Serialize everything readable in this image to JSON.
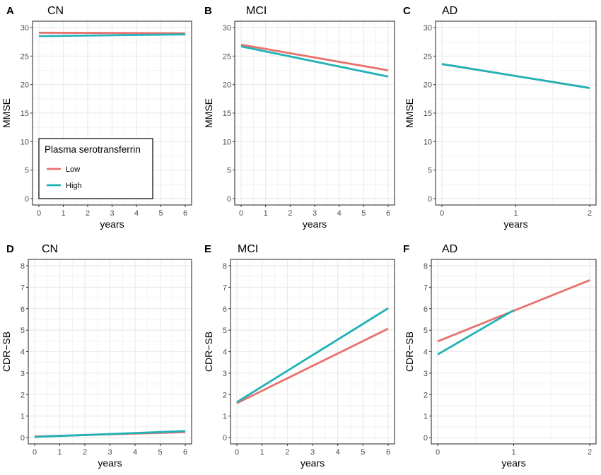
{
  "colors": {
    "low": "#e8716d",
    "high": "#1fb2b8",
    "grid": "#ebebeb",
    "frame": "#333333",
    "text": "#000000",
    "tick": "#4d4d4d"
  },
  "legend": {
    "title": "Plasma serotransferrin",
    "items": [
      {
        "label": "Low",
        "series": "low"
      },
      {
        "label": "High",
        "series": "high"
      }
    ]
  },
  "chart_data": [
    {
      "panel": "A",
      "title": "CN",
      "type": "line",
      "xlabel": "years",
      "ylabel": "MMSE",
      "xlim": [
        0,
        6
      ],
      "xticks": [
        0,
        1,
        2,
        3,
        4,
        5,
        6
      ],
      "ylim": [
        0,
        30
      ],
      "yticks": [
        0,
        5,
        10,
        15,
        20,
        25,
        30
      ],
      "legend": "bottom-left",
      "series": [
        {
          "name": "Low",
          "color_key": "low",
          "x": [
            0,
            6
          ],
          "y": [
            29.1,
            29.0
          ]
        },
        {
          "name": "High",
          "color_key": "high",
          "x": [
            0,
            6
          ],
          "y": [
            28.5,
            28.8
          ]
        }
      ]
    },
    {
      "panel": "B",
      "title": "MCI",
      "type": "line",
      "xlabel": "years",
      "ylabel": "MMSE",
      "xlim": [
        0,
        6
      ],
      "xticks": [
        0,
        1,
        2,
        3,
        4,
        5,
        6
      ],
      "ylim": [
        0,
        30
      ],
      "yticks": [
        0,
        5,
        10,
        15,
        20,
        25,
        30
      ],
      "series": [
        {
          "name": "Low",
          "color_key": "low",
          "x": [
            0,
            6
          ],
          "y": [
            27.0,
            22.5
          ]
        },
        {
          "name": "High",
          "color_key": "high",
          "x": [
            0,
            6
          ],
          "y": [
            26.7,
            21.4
          ]
        }
      ]
    },
    {
      "panel": "C",
      "title": "AD",
      "type": "line",
      "xlabel": "years",
      "ylabel": "MMSE",
      "xlim": [
        0,
        2
      ],
      "xticks": [
        0,
        1,
        2
      ],
      "ylim": [
        0,
        30
      ],
      "yticks": [
        0,
        5,
        10,
        15,
        20,
        25,
        30
      ],
      "series": [
        {
          "name": "Low",
          "color_key": "low",
          "x": [
            0,
            2
          ],
          "y": [
            23.6,
            19.4
          ]
        },
        {
          "name": "High",
          "color_key": "high",
          "x": [
            0,
            2
          ],
          "y": [
            23.6,
            19.4
          ]
        }
      ]
    },
    {
      "panel": "D",
      "title": "CN",
      "type": "line",
      "xlabel": "years",
      "ylabel": "CDR−SB",
      "xlim": [
        0,
        6
      ],
      "xticks": [
        0,
        1,
        2,
        3,
        4,
        5,
        6
      ],
      "ylim": [
        0,
        8
      ],
      "yticks": [
        0,
        1,
        2,
        3,
        4,
        5,
        6,
        7,
        8
      ],
      "series": [
        {
          "name": "Low",
          "color_key": "low",
          "x": [
            0,
            6
          ],
          "y": [
            0.05,
            0.25
          ]
        },
        {
          "name": "High",
          "color_key": "high",
          "x": [
            0,
            6
          ],
          "y": [
            0.03,
            0.3
          ]
        }
      ]
    },
    {
      "panel": "E",
      "title": "MCI",
      "type": "line",
      "xlabel": "years",
      "ylabel": "CDR−SB",
      "xlim": [
        0,
        6
      ],
      "xticks": [
        0,
        1,
        2,
        3,
        4,
        5,
        6
      ],
      "ylim": [
        0,
        8
      ],
      "yticks": [
        0,
        1,
        2,
        3,
        4,
        5,
        6,
        7,
        8
      ],
      "series": [
        {
          "name": "Low",
          "color_key": "low",
          "x": [
            0,
            6
          ],
          "y": [
            1.6,
            5.07
          ]
        },
        {
          "name": "High",
          "color_key": "high",
          "x": [
            0,
            6
          ],
          "y": [
            1.65,
            6.02
          ]
        }
      ]
    },
    {
      "panel": "F",
      "title": "AD",
      "type": "line",
      "xlabel": "years",
      "ylabel": "CDR−SB",
      "xlim": [
        0,
        2
      ],
      "xticks": [
        0,
        1,
        2
      ],
      "ylim": [
        0,
        8
      ],
      "yticks": [
        0,
        1,
        2,
        3,
        4,
        5,
        6,
        7,
        8
      ],
      "series": [
        {
          "name": "Low",
          "color_key": "low",
          "x": [
            0,
            2
          ],
          "y": [
            4.48,
            7.33
          ]
        },
        {
          "name": "High",
          "color_key": "high",
          "x": [
            0,
            1
          ],
          "y": [
            3.87,
            5.93
          ]
        }
      ]
    }
  ]
}
